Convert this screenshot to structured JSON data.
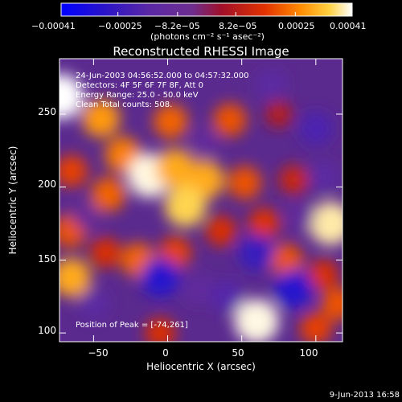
{
  "chart_data": {
    "type": "heatmap",
    "title": "Reconstructed RHESSI Image",
    "xlabel": "Heliocentric X (arcsec)",
    "ylabel": "Heliocentric Y (arcsec)",
    "xlim": [
      -73,
      118
    ],
    "ylim": [
      94,
      288
    ],
    "xticks": [
      -50,
      0,
      50,
      100
    ],
    "yticks": [
      100,
      150,
      200,
      250
    ],
    "x_tick_labels": [
      "−50",
      "0",
      "50",
      "100"
    ],
    "y_tick_labels": [
      "100",
      "150",
      "200",
      "250"
    ],
    "colorbar": {
      "range": [
        -0.00041,
        0.00041
      ],
      "tick_values": [
        -0.00041,
        -0.00025,
        -8.2e-05,
        8.2e-05,
        0.00025,
        0.00041
      ],
      "tick_labels": [
        "−0.00041",
        "−0.00025",
        "−8.2e−05",
        "8.2e−05",
        "0.00025",
        "0.00041"
      ],
      "unit_label": "(photons cm⁻² s⁻¹ asec⁻²)"
    },
    "annotations": [
      "24-Jun-2003 04:56:52.000 to 04:57:32.000",
      "Detectors: 4F 5F 6F 7F 8F, Att 0",
      "Energy Range: 25.0 - 50.0 keV",
      "Clean     Total counts: 508."
    ],
    "peak_label": "Position of Peak = [-74,261]",
    "peak_position": [
      -74,
      261
    ],
    "blobs": [
      {
        "x": -72,
        "y": 262,
        "v": 0.00041
      },
      {
        "x": -45,
        "y": 247,
        "v": 0.00028
      },
      {
        "x": -30,
        "y": 222,
        "v": 0.00025
      },
      {
        "x": -12,
        "y": 208,
        "v": 0.0004
      },
      {
        "x": 5,
        "y": 213,
        "v": 0.0003
      },
      {
        "x": 2,
        "y": 245,
        "v": 0.00022
      },
      {
        "x": 25,
        "y": 205,
        "v": 0.0003
      },
      {
        "x": 12,
        "y": 187,
        "v": 0.00035
      },
      {
        "x": 52,
        "y": 203,
        "v": 0.0002
      },
      {
        "x": 36,
        "y": 170,
        "v": 0.00015
      },
      {
        "x": 42,
        "y": 246,
        "v": 0.0002
      },
      {
        "x": -40,
        "y": 195,
        "v": 0.00022
      },
      {
        "x": -65,
        "y": 211,
        "v": 0.00018
      },
      {
        "x": -66,
        "y": 170,
        "v": 0.0002
      },
      {
        "x": -42,
        "y": 155,
        "v": 0.00015
      },
      {
        "x": -65,
        "y": 138,
        "v": 0.0003
      },
      {
        "x": -20,
        "y": 150,
        "v": 0.00022
      },
      {
        "x": 5,
        "y": 155,
        "v": 0.00018
      },
      {
        "x": 75,
        "y": 250,
        "v": 8e-05
      },
      {
        "x": 65,
        "y": 175,
        "v": 0.00016
      },
      {
        "x": 80,
        "y": 150,
        "v": 0.0002
      },
      {
        "x": 110,
        "y": 175,
        "v": 0.00038
      },
      {
        "x": 105,
        "y": 140,
        "v": 0.00015
      },
      {
        "x": 60,
        "y": 108,
        "v": 0.0004
      },
      {
        "x": 100,
        "y": 103,
        "v": 0.00018
      },
      {
        "x": -5,
        "y": 100,
        "v": 0.00015
      },
      {
        "x": 115,
        "y": 120,
        "v": 0.0002
      },
      {
        "x": 85,
        "y": 205,
        "v": 0.00012
      },
      {
        "x": -5,
        "y": 138,
        "v": -0.0003
      },
      {
        "x": 60,
        "y": 155,
        "v": -0.00025
      },
      {
        "x": 85,
        "y": 130,
        "v": -0.0003
      },
      {
        "x": 105,
        "y": 207,
        "v": -0.00015
      },
      {
        "x": 40,
        "y": 125,
        "v": -0.00018
      },
      {
        "x": 20,
        "y": 130,
        "v": -0.00012
      },
      {
        "x": 100,
        "y": 240,
        "v": -0.0002
      },
      {
        "x": 70,
        "y": 270,
        "v": -0.00015
      },
      {
        "x": -50,
        "y": 120,
        "v": -0.00015
      },
      {
        "x": 25,
        "y": 230,
        "v": -0.0001
      },
      {
        "x": -55,
        "y": 180,
        "v": -8e-05
      },
      {
        "x": 90,
        "y": 180,
        "v": -0.0001
      }
    ]
  },
  "footer": {
    "timestamp": "9-Jun-2013 16:58"
  }
}
